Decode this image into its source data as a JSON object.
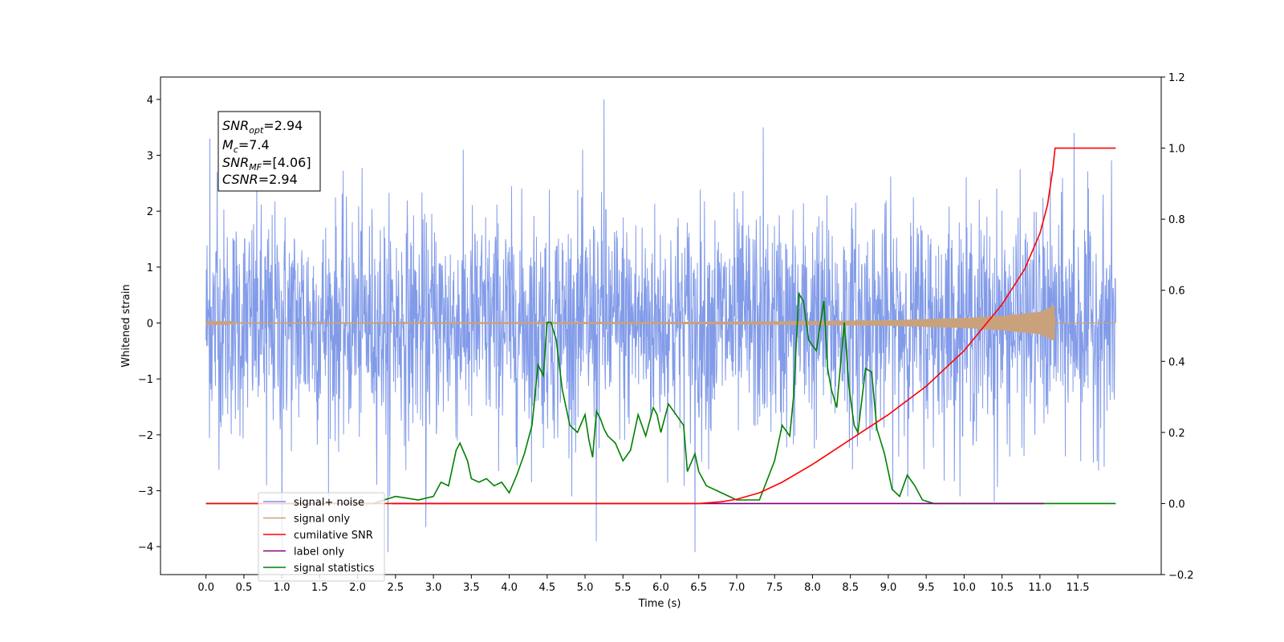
{
  "chart_data": {
    "type": "line",
    "xlabel": "Time (s)",
    "ylabel": "Whitened strain",
    "xlim": [
      -0.6,
      12.6
    ],
    "ylim": [
      -4.5,
      4.4
    ],
    "ylim_right": [
      -0.2,
      1.2
    ],
    "x_ticks": [
      "0.0",
      "0.5",
      "1.0",
      "1.5",
      "2.0",
      "2.5",
      "3.0",
      "3.5",
      "4.0",
      "4.5",
      "5.0",
      "5.5",
      "6.0",
      "6.5",
      "7.0",
      "7.5",
      "8.0",
      "8.5",
      "9.0",
      "9.5",
      "10.0",
      "10.5",
      "11.0",
      "11.5"
    ],
    "y_ticks_left": [
      "4",
      "3",
      "2",
      "1",
      "0",
      "−1",
      "−2",
      "−3",
      "−4"
    ],
    "y_ticks_right": [
      "1.2",
      "1.0",
      "0.8",
      "0.6",
      "0.4",
      "0.2",
      "0.0",
      "−0.2"
    ],
    "legend_placement": "lower-left",
    "grid": false,
    "annotation": {
      "snr_opt": "=2.94",
      "mc": "=7.4",
      "snr_mf": "=[4.06]",
      "csnr": "=2.94"
    },
    "series": [
      {
        "name": "signal+ noise",
        "axis": "left",
        "color": "#7b96e8",
        "x_range": [
          0.0,
          12.0
        ],
        "typical_amplitude": 1.0,
        "peaks": [
          [
            0.05,
            3.3
          ],
          [
            0.15,
            2.7
          ],
          [
            5.25,
            4.0
          ],
          [
            7.35,
            3.5
          ],
          [
            11.45,
            3.4
          ],
          [
            1.0,
            -4.1
          ],
          [
            2.4,
            -4.1
          ],
          [
            6.45,
            -4.1
          ],
          [
            5.15,
            -3.9
          ],
          [
            2.9,
            -3.65
          ],
          [
            0.8,
            -2.9
          ],
          [
            10.4,
            -3.2
          ]
        ]
      },
      {
        "name": "signal only",
        "axis": "left",
        "color": "#c9a27c",
        "x_range": [
          0.0,
          12.0
        ],
        "envelope": [
          [
            0.0,
            0.01
          ],
          [
            6.5,
            0.02
          ],
          [
            7.5,
            0.03
          ],
          [
            9.0,
            0.05
          ],
          [
            10.0,
            0.09
          ],
          [
            10.5,
            0.13
          ],
          [
            11.0,
            0.2
          ],
          [
            11.19,
            0.32
          ],
          [
            11.2,
            0.0
          ],
          [
            12.0,
            0.0
          ]
        ]
      },
      {
        "name": "cumilative SNR",
        "axis": "right",
        "color": "#ff0000",
        "x": [
          0.0,
          6.5,
          6.8,
          7.0,
          7.3,
          7.6,
          8.0,
          8.5,
          9.0,
          9.5,
          10.0,
          10.5,
          10.8,
          11.0,
          11.1,
          11.17,
          11.2,
          12.0
        ],
        "values": [
          0.0,
          0.0,
          0.005,
          0.012,
          0.03,
          0.06,
          0.11,
          0.18,
          0.25,
          0.33,
          0.43,
          0.56,
          0.66,
          0.76,
          0.84,
          0.94,
          1.0,
          1.0
        ]
      },
      {
        "name": "label only",
        "axis": "right",
        "color": "#800080",
        "x": [
          2.45,
          11.05
        ],
        "values": [
          0.0,
          0.0
        ]
      },
      {
        "name": "signal statistics",
        "axis": "right",
        "color": "#008000",
        "x": [
          0.0,
          2.2,
          2.5,
          2.8,
          3.0,
          3.1,
          3.2,
          3.3,
          3.35,
          3.45,
          3.5,
          3.6,
          3.7,
          3.8,
          3.9,
          4.0,
          4.1,
          4.2,
          4.3,
          4.38,
          4.45,
          4.5,
          4.55,
          4.62,
          4.7,
          4.8,
          4.9,
          5.0,
          5.05,
          5.1,
          5.15,
          5.2,
          5.25,
          5.3,
          5.4,
          5.5,
          5.6,
          5.7,
          5.75,
          5.8,
          5.9,
          5.95,
          6.0,
          6.1,
          6.2,
          6.3,
          6.35,
          6.45,
          6.5,
          6.6,
          6.8,
          7.0,
          7.3,
          7.5,
          7.6,
          7.7,
          7.75,
          7.82,
          7.88,
          7.95,
          8.05,
          8.15,
          8.2,
          8.25,
          8.32,
          8.42,
          8.48,
          8.55,
          8.6,
          8.7,
          8.78,
          8.85,
          8.95,
          9.05,
          9.15,
          9.25,
          9.35,
          9.45,
          9.6,
          10.0,
          12.0
        ],
        "values": [
          0.0,
          0.0,
          0.02,
          0.01,
          0.02,
          0.06,
          0.05,
          0.15,
          0.17,
          0.12,
          0.07,
          0.06,
          0.07,
          0.05,
          0.06,
          0.03,
          0.08,
          0.14,
          0.22,
          0.39,
          0.36,
          0.51,
          0.51,
          0.46,
          0.32,
          0.22,
          0.2,
          0.25,
          0.18,
          0.13,
          0.26,
          0.24,
          0.21,
          0.19,
          0.17,
          0.12,
          0.15,
          0.25,
          0.22,
          0.19,
          0.27,
          0.25,
          0.2,
          0.28,
          0.25,
          0.22,
          0.09,
          0.14,
          0.09,
          0.05,
          0.03,
          0.01,
          0.01,
          0.12,
          0.22,
          0.19,
          0.3,
          0.59,
          0.57,
          0.46,
          0.43,
          0.57,
          0.38,
          0.32,
          0.27,
          0.51,
          0.33,
          0.22,
          0.2,
          0.38,
          0.37,
          0.21,
          0.14,
          0.04,
          0.02,
          0.08,
          0.05,
          0.01,
          0.0,
          0.0,
          0.0
        ]
      }
    ]
  }
}
